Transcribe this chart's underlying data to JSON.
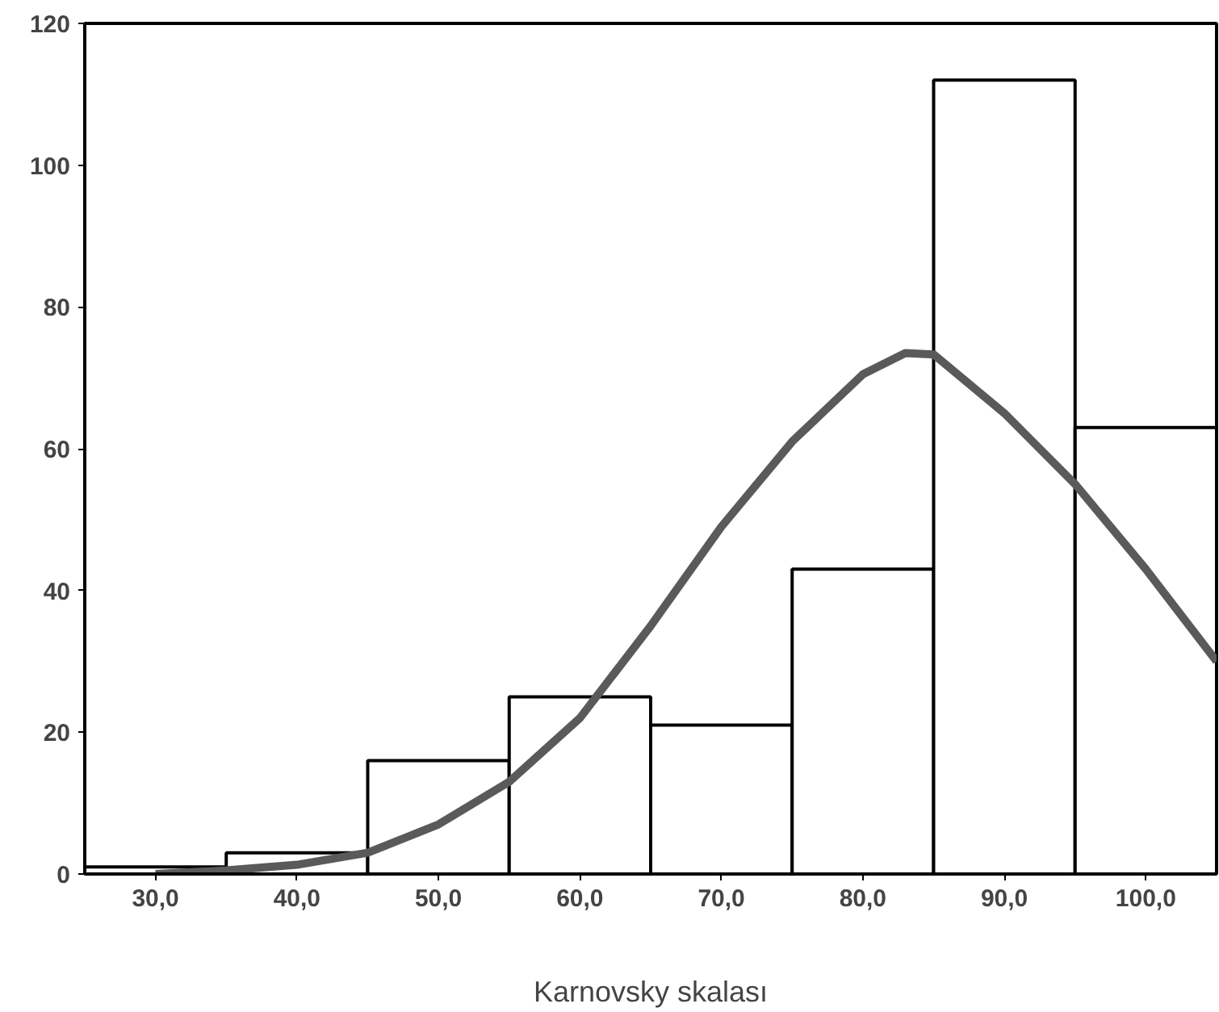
{
  "chart_data": {
    "type": "histogram",
    "xlabel": "Karnovsky skalası",
    "xlim": [
      25,
      105
    ],
    "ylim": [
      0,
      120
    ],
    "xticks": [
      {
        "value": 30,
        "label": "30,0"
      },
      {
        "value": 40,
        "label": "40,0"
      },
      {
        "value": 50,
        "label": "50,0"
      },
      {
        "value": 60,
        "label": "60,0"
      },
      {
        "value": 70,
        "label": "70,0"
      },
      {
        "value": 80,
        "label": "80,0"
      },
      {
        "value": 90,
        "label": "90,0"
      },
      {
        "value": 100,
        "label": "100,0"
      }
    ],
    "yticks": [
      0,
      20,
      40,
      60,
      80,
      100,
      120
    ],
    "grid": false,
    "series": [
      {
        "color": "#ffffff",
        "bins": [
          25,
          35,
          45,
          55,
          65,
          75,
          85,
          95,
          105
        ],
        "values": [
          1,
          3,
          16,
          25,
          21,
          43,
          112,
          63
        ]
      },
      {
        "type": "line",
        "color": "#5a5a5a",
        "x": [
          30,
          35,
          40,
          45,
          50,
          55,
          60,
          65,
          70,
          75,
          80,
          83,
          85,
          90,
          95,
          100,
          105
        ],
        "values": [
          0,
          0.5,
          1.3,
          3,
          7,
          13,
          22,
          35,
          49,
          61,
          70.5,
          73.5,
          73.3,
          65,
          55,
          43,
          30
        ]
      }
    ]
  }
}
